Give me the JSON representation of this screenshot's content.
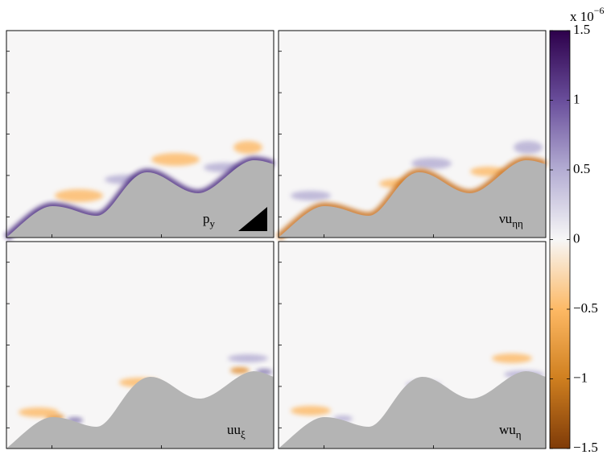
{
  "panels": [
    {
      "label": "p",
      "subscript": "y"
    },
    {
      "label": "νu",
      "subscript": "ηη"
    },
    {
      "label": "uu",
      "subscript": "ξ"
    },
    {
      "label": "wu",
      "subscript": "η"
    }
  ],
  "colorbar": {
    "exponent_prefix": "x 10",
    "exponent": "−6",
    "clim": [
      -1.5,
      1.5
    ],
    "ticks": [
      1.5,
      1,
      0.5,
      0,
      {
        "value": -0.5,
        "label": "−0.5"
      },
      {
        "value": -1,
        "label": "−1"
      },
      {
        "value": -1.5,
        "label": "−1.5"
      }
    ]
  }
}
